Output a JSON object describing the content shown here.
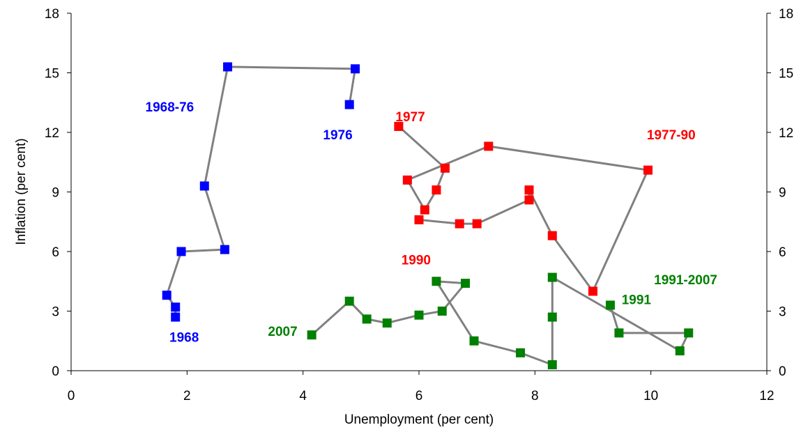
{
  "chart_data": {
    "type": "scatter",
    "title": "",
    "xlabel": "Unemployment (per cent)",
    "ylabel": "Inflation (per cent)",
    "xlim": [
      0,
      12
    ],
    "ylim": [
      0,
      18
    ],
    "x_ticks": [
      "0",
      "2",
      "4",
      "6",
      "8",
      "10",
      "12"
    ],
    "y_ticks": [
      "0",
      "3",
      "6",
      "9",
      "12",
      "15",
      "18"
    ],
    "y_ticks_right": [
      "0",
      "3",
      "6",
      "9",
      "12",
      "15",
      "18"
    ],
    "grid": false,
    "line_color": "#808080",
    "series": [
      {
        "name": "1968-76",
        "color": "#0000FF",
        "x": [
          1.8,
          1.8,
          1.65,
          1.9,
          2.65,
          2.3,
          2.7,
          4.9,
          4.8
        ],
        "y": [
          2.7,
          3.2,
          3.8,
          6.0,
          6.1,
          9.3,
          15.3,
          15.2,
          13.4
        ]
      },
      {
        "name": "1977-90",
        "color": "#FF0000",
        "x": [
          5.65,
          6.45,
          6.3,
          6.1,
          5.8,
          7.2,
          9.95,
          9.0,
          8.3,
          7.9,
          7.9,
          7.0,
          6.7,
          6.0
        ],
        "y": [
          12.3,
          10.2,
          9.1,
          8.1,
          9.6,
          11.3,
          10.1,
          4.0,
          6.8,
          9.1,
          8.6,
          7.4,
          7.4,
          7.6
        ]
      },
      {
        "name": "1991-2007",
        "color": "#008000",
        "x": [
          9.3,
          9.45,
          10.65,
          10.5,
          8.3,
          8.3,
          8.3,
          7.75,
          6.95,
          6.3,
          6.8,
          6.4,
          6.0,
          5.45,
          5.1,
          4.8,
          4.15
        ],
        "y": [
          3.3,
          1.9,
          1.9,
          1.0,
          4.7,
          2.7,
          0.3,
          0.9,
          1.5,
          4.5,
          4.4,
          3.0,
          2.8,
          2.4,
          2.6,
          3.5,
          1.8
        ]
      }
    ],
    "annotations": [
      {
        "text": "1968-76",
        "x": 1.7,
        "y": 13.3,
        "color": "#0000FF"
      },
      {
        "text": "1976",
        "x": 4.6,
        "y": 11.9,
        "color": "#0000FF"
      },
      {
        "text": "1968",
        "x": 1.95,
        "y": 1.7,
        "color": "#0000FF"
      },
      {
        "text": "1977",
        "x": 5.85,
        "y": 12.8,
        "color": "#FF0000"
      },
      {
        "text": "1977-90",
        "x": 10.35,
        "y": 11.9,
        "color": "#FF0000"
      },
      {
        "text": "1990",
        "x": 5.95,
        "y": 5.6,
        "color": "#FF0000"
      },
      {
        "text": "1991-2007",
        "x": 10.6,
        "y": 4.6,
        "color": "#008000"
      },
      {
        "text": "1991",
        "x": 9.75,
        "y": 3.6,
        "color": "#008000"
      },
      {
        "text": "2007",
        "x": 3.65,
        "y": 2.0,
        "color": "#008000"
      }
    ]
  }
}
